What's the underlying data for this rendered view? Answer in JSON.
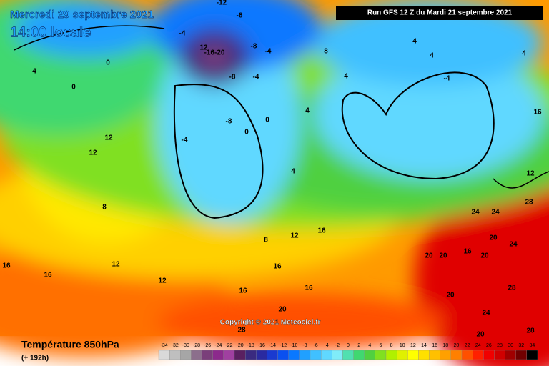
{
  "header": {
    "date": "Mercredi 29 septembre 2021",
    "time": "14:00 locale",
    "run": "Run GFS 12 Z du Mardi 21 septembre 2021"
  },
  "copyright": "Copyright © 2021 Meteociel.fr",
  "footer": {
    "title": "Température 850hPa",
    "lead": "(+ 192h)"
  },
  "legend": {
    "items": [
      {
        "value": -34,
        "color": "#d9d9d9"
      },
      {
        "value": -32,
        "color": "#bfbfbf"
      },
      {
        "value": -30,
        "color": "#a6a6a6"
      },
      {
        "value": -28,
        "color": "#8c6f8c"
      },
      {
        "value": -26,
        "color": "#7a3f7a"
      },
      {
        "value": -24,
        "color": "#8c2a8c"
      },
      {
        "value": -22,
        "color": "#a040a0"
      },
      {
        "value": -20,
        "color": "#5a2060"
      },
      {
        "value": -18,
        "color": "#3a2a80"
      },
      {
        "value": -16,
        "color": "#2a2aa0"
      },
      {
        "value": -14,
        "color": "#1a3ad0"
      },
      {
        "value": -12,
        "color": "#0a50f0"
      },
      {
        "value": -10,
        "color": "#0a78ff"
      },
      {
        "value": -8,
        "color": "#20a0ff"
      },
      {
        "value": -6,
        "color": "#40c0ff"
      },
      {
        "value": -4,
        "color": "#60d8ff"
      },
      {
        "value": -2,
        "color": "#80ecf8"
      },
      {
        "value": 0,
        "color": "#50e0b0"
      },
      {
        "value": 2,
        "color": "#40d870"
      },
      {
        "value": 4,
        "color": "#50d040"
      },
      {
        "value": 6,
        "color": "#80e020"
      },
      {
        "value": 8,
        "color": "#b0f000"
      },
      {
        "value": 10,
        "color": "#e0f000"
      },
      {
        "value": 12,
        "color": "#ffff00"
      },
      {
        "value": 14,
        "color": "#ffe000"
      },
      {
        "value": 16,
        "color": "#ffc000"
      },
      {
        "value": 18,
        "color": "#ffa000"
      },
      {
        "value": 20,
        "color": "#ff8000"
      },
      {
        "value": 22,
        "color": "#ff5000"
      },
      {
        "value": 24,
        "color": "#ff2000"
      },
      {
        "value": 26,
        "color": "#f00000"
      },
      {
        "value": 28,
        "color": "#d00000"
      },
      {
        "value": 30,
        "color": "#a00000"
      },
      {
        "value": 32,
        "color": "#700000"
      },
      {
        "value": 34,
        "color": "#000000"
      }
    ]
  },
  "map": {
    "labels": [
      "-12",
      "-8",
      "-4",
      "-8",
      "12",
      "-16-20",
      "-4",
      "-8",
      "-4",
      "8",
      "4",
      "4",
      "4",
      "-4",
      "4",
      "0",
      "0",
      "4",
      "0",
      "-8",
      "0",
      "-4",
      "4",
      "4",
      "12",
      "12",
      "8",
      "12",
      "16",
      "24",
      "24",
      "28",
      "20",
      "24",
      "20",
      "20",
      "16",
      "20",
      "16",
      "16",
      "12",
      "12",
      "16",
      "16",
      "20",
      "28",
      "24",
      "20",
      "28",
      "20",
      "28",
      "8",
      "12",
      "16",
      "16"
    ]
  }
}
